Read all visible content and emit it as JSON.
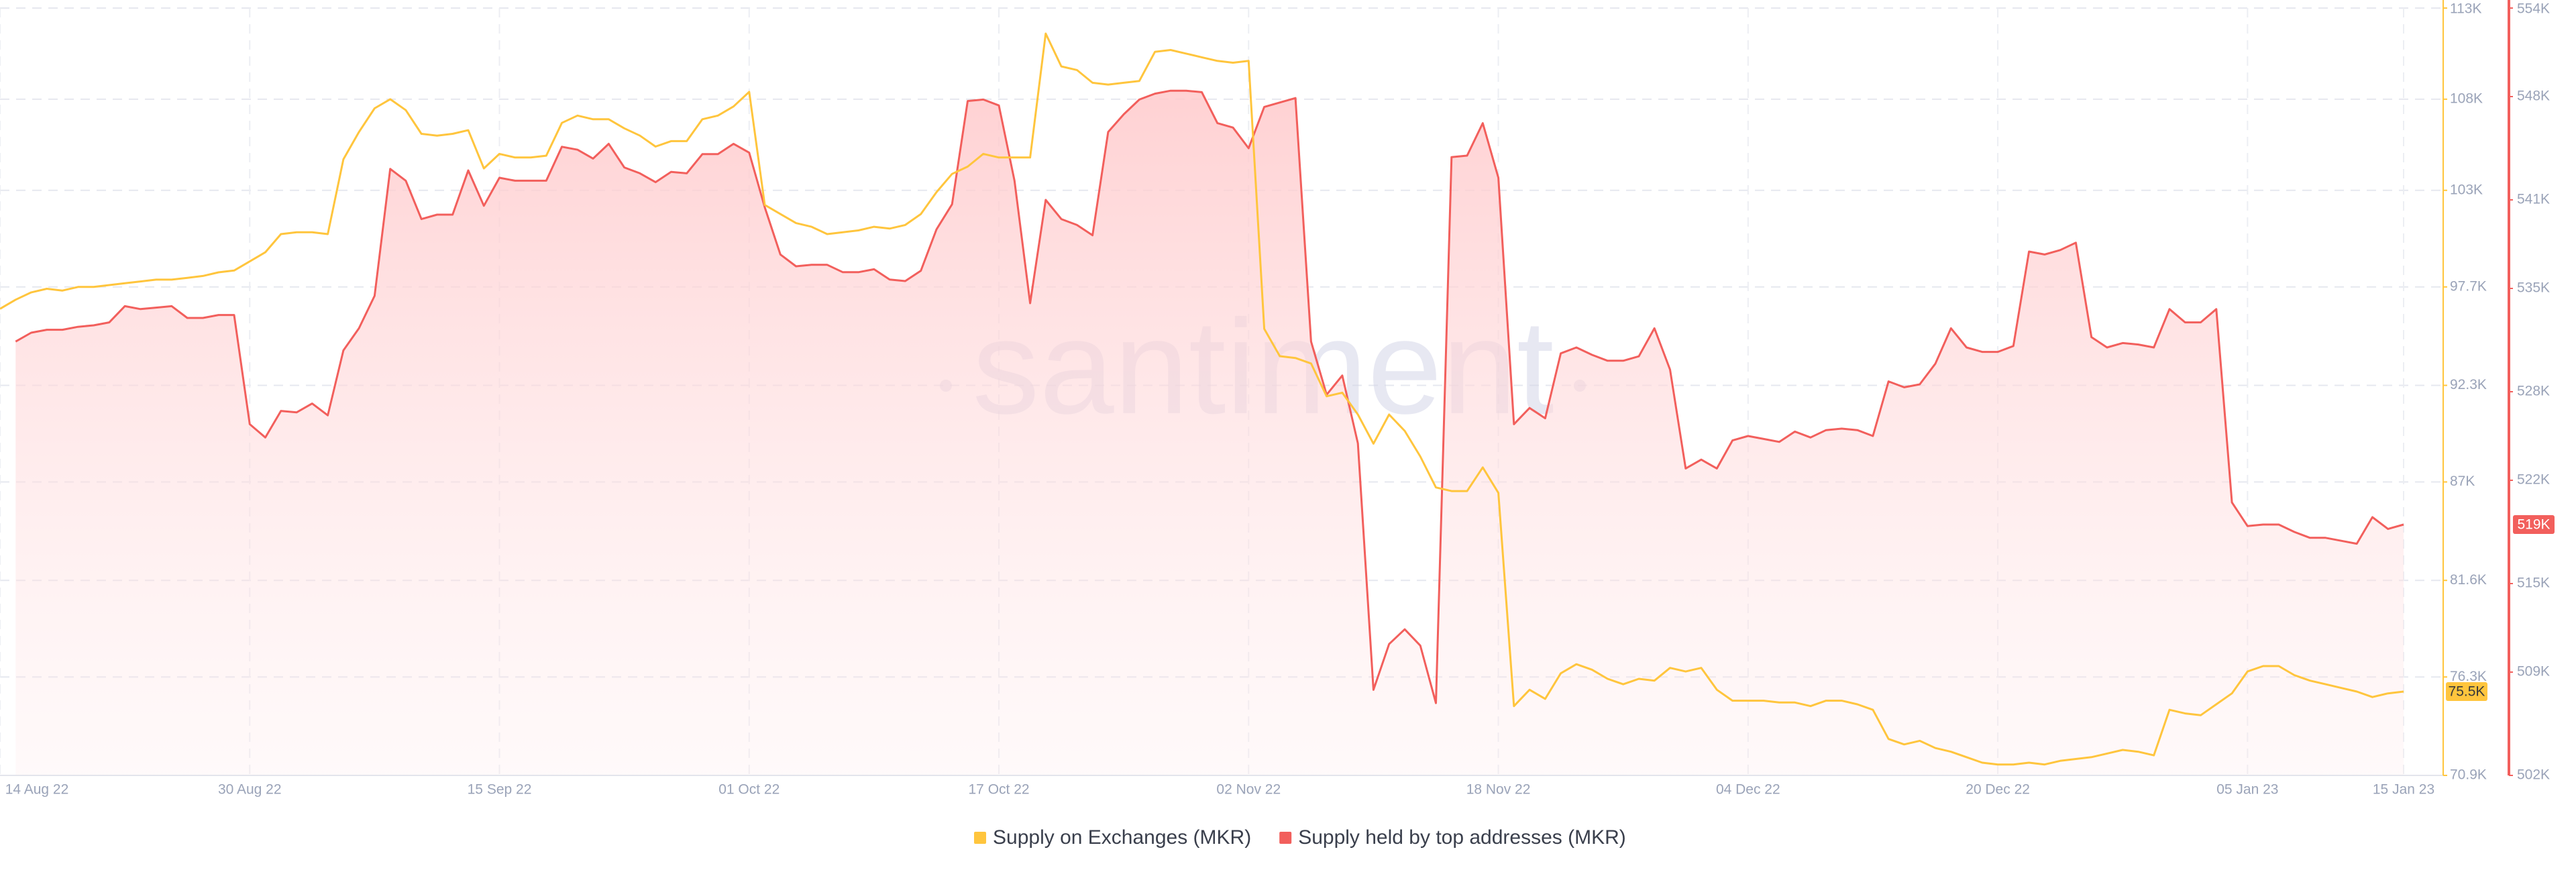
{
  "chart_data": {
    "type": "line",
    "watermark": "santiment",
    "x": [
      "2022-08-14",
      "2022-08-15",
      "2022-08-16",
      "2022-08-17",
      "2022-08-18",
      "2022-08-19",
      "2022-08-20",
      "2022-08-21",
      "2022-08-22",
      "2022-08-23",
      "2022-08-24",
      "2022-08-25",
      "2022-08-26",
      "2022-08-27",
      "2022-08-28",
      "2022-08-29",
      "2022-08-30",
      "2022-08-31",
      "2022-09-01",
      "2022-09-02",
      "2022-09-03",
      "2022-09-04",
      "2022-09-05",
      "2022-09-06",
      "2022-09-07",
      "2022-09-08",
      "2022-09-09",
      "2022-09-10",
      "2022-09-11",
      "2022-09-12",
      "2022-09-13",
      "2022-09-14",
      "2022-09-15",
      "2022-09-16",
      "2022-09-17",
      "2022-09-18",
      "2022-09-19",
      "2022-09-20",
      "2022-09-21",
      "2022-09-22",
      "2022-09-23",
      "2022-09-24",
      "2022-09-25",
      "2022-09-26",
      "2022-09-27",
      "2022-09-28",
      "2022-09-29",
      "2022-09-30",
      "2022-10-01",
      "2022-10-02",
      "2022-10-03",
      "2022-10-04",
      "2022-10-05",
      "2022-10-06",
      "2022-10-07",
      "2022-10-08",
      "2022-10-09",
      "2022-10-10",
      "2022-10-11",
      "2022-10-12",
      "2022-10-13",
      "2022-10-14",
      "2022-10-15",
      "2022-10-16",
      "2022-10-17",
      "2022-10-18",
      "2022-10-19",
      "2022-10-20",
      "2022-10-21",
      "2022-10-22",
      "2022-10-23",
      "2022-10-24",
      "2022-10-25",
      "2022-10-26",
      "2022-10-27",
      "2022-10-28",
      "2022-10-29",
      "2022-10-30",
      "2022-10-31",
      "2022-11-01",
      "2022-11-02",
      "2022-11-03",
      "2022-11-04",
      "2022-11-05",
      "2022-11-06",
      "2022-11-07",
      "2022-11-08",
      "2022-11-09",
      "2022-11-10",
      "2022-11-11",
      "2022-11-12",
      "2022-11-13",
      "2022-11-14",
      "2022-11-15",
      "2022-11-16",
      "2022-11-17",
      "2022-11-18",
      "2022-11-19",
      "2022-11-20",
      "2022-11-21",
      "2022-11-22",
      "2022-11-23",
      "2022-11-24",
      "2022-11-25",
      "2022-11-26",
      "2022-11-27",
      "2022-11-28",
      "2022-11-29",
      "2022-11-30",
      "2022-12-01",
      "2022-12-02",
      "2022-12-03",
      "2022-12-04",
      "2022-12-05",
      "2022-12-06",
      "2022-12-07",
      "2022-12-08",
      "2022-12-09",
      "2022-12-10",
      "2022-12-11",
      "2022-12-12",
      "2022-12-13",
      "2022-12-14",
      "2022-12-15",
      "2022-12-16",
      "2022-12-17",
      "2022-12-18",
      "2022-12-19",
      "2022-12-20",
      "2022-12-21",
      "2022-12-22",
      "2022-12-23",
      "2022-12-24",
      "2022-12-25",
      "2022-12-26",
      "2022-12-27",
      "2022-12-28",
      "2022-12-29",
      "2022-12-30",
      "2022-12-31",
      "2023-01-01",
      "2023-01-02",
      "2023-01-03",
      "2023-01-04",
      "2023-01-05",
      "2023-01-06",
      "2023-01-07",
      "2023-01-08",
      "2023-01-09",
      "2023-01-10",
      "2023-01-11",
      "2023-01-12",
      "2023-01-13",
      "2023-01-14",
      "2023-01-15"
    ],
    "xlim": [
      "2022-08-14",
      "2023-01-15"
    ],
    "xticks": [
      {
        "value": "2022-08-14",
        "label": "14 Aug 22"
      },
      {
        "value": "2022-08-30",
        "label": "30 Aug 22"
      },
      {
        "value": "2022-09-15",
        "label": "15 Sep 22"
      },
      {
        "value": "2022-10-01",
        "label": "01 Oct 22"
      },
      {
        "value": "2022-10-17",
        "label": "17 Oct 22"
      },
      {
        "value": "2022-11-02",
        "label": "02 Nov 22"
      },
      {
        "value": "2022-11-18",
        "label": "18 Nov 22"
      },
      {
        "value": "2022-12-04",
        "label": "04 Dec 22"
      },
      {
        "value": "2022-12-20",
        "label": "20 Dec 22"
      },
      {
        "value": "2023-01-05",
        "label": "05 Jan 23"
      },
      {
        "value": "2023-01-15",
        "label": "15 Jan 23"
      }
    ],
    "ylim": [
      70900,
      113000
    ],
    "yticks": [
      {
        "value": 70900,
        "label": "70.9K"
      },
      {
        "value": 76300,
        "label": "76.3K"
      },
      {
        "value": 81600,
        "label": "81.6K"
      },
      {
        "value": 87000,
        "label": "87K"
      },
      {
        "value": 92300,
        "label": "92.3K"
      },
      {
        "value": 97700,
        "label": "97.7K"
      },
      {
        "value": 103000,
        "label": "103K"
      },
      {
        "value": 108000,
        "label": "108K"
      },
      {
        "value": 113000,
        "label": "113K"
      }
    ],
    "y2lim": [
      502000,
      554000
    ],
    "y2ticks": [
      {
        "value": 502000,
        "label": "502K"
      },
      {
        "value": 509000,
        "label": "509K"
      },
      {
        "value": 515000,
        "label": "515K"
      },
      {
        "value": 522000,
        "label": "522K"
      },
      {
        "value": 528000,
        "label": "528K"
      },
      {
        "value": 535000,
        "label": "535K"
      },
      {
        "value": 541000,
        "label": "541K"
      },
      {
        "value": 548000,
        "label": "548K"
      },
      {
        "value": 554000,
        "label": "554K"
      }
    ],
    "grid": true,
    "legend": "bottom",
    "series": [
      {
        "name": "Supply on Exchanges (MKR)",
        "color": "#ffc53d",
        "axis": "y",
        "last_value_label": "75.5K",
        "values": [
          96500,
          97000,
          97400,
          97600,
          97500,
          97700,
          97700,
          97800,
          97900,
          98000,
          98100,
          98100,
          98200,
          98300,
          98500,
          98600,
          99100,
          99600,
          100600,
          100700,
          100700,
          100600,
          104700,
          106200,
          107500,
          108000,
          107400,
          106100,
          106000,
          106100,
          106300,
          104200,
          105000,
          104800,
          104800,
          104900,
          106700,
          107100,
          106900,
          106900,
          106400,
          106000,
          105400,
          105700,
          105700,
          106900,
          107100,
          107600,
          108400,
          102200,
          101700,
          101200,
          101000,
          100600,
          100700,
          100800,
          101000,
          100900,
          101100,
          101700,
          102900,
          103900,
          104300,
          105000,
          104800,
          104800,
          104800,
          111600,
          109800,
          109600,
          108900,
          108800,
          108900,
          109000,
          110600,
          110700,
          110500,
          110300,
          110100,
          110000,
          110100,
          95400,
          93900,
          93800,
          93500,
          91700,
          91900,
          90700,
          89100,
          90700,
          89800,
          88400,
          86700,
          86500,
          86500,
          87800,
          86400,
          74700,
          75600,
          75100,
          76500,
          77000,
          76700,
          76200,
          75900,
          76200,
          76100,
          76800,
          76600,
          76800,
          75600,
          75000,
          75000,
          75000,
          74900,
          74900,
          74700,
          75000,
          75000,
          74800,
          74500,
          72900,
          72600,
          72800,
          72400,
          72200,
          71900,
          71600,
          71500,
          71500,
          71600,
          71500,
          71700,
          71800,
          71900,
          72100,
          72300,
          72200,
          72000,
          74500,
          74300,
          74200,
          74800,
          75400,
          76600,
          76900,
          76900,
          76400,
          76100,
          75900,
          75700,
          75500,
          75200,
          75400,
          75500
        ]
      },
      {
        "name": "Supply held by top addresses (MKR)",
        "color": "#f25f5c",
        "axis": "y2",
        "last_value_label": "519K",
        "values": [
          null,
          531400,
          532000,
          532200,
          532200,
          532400,
          532500,
          532700,
          533800,
          533600,
          533700,
          533800,
          533000,
          533000,
          533200,
          533200,
          525800,
          524900,
          526700,
          526600,
          527200,
          526400,
          530800,
          532300,
          534500,
          543100,
          542300,
          539700,
          540000,
          540000,
          543000,
          540600,
          542500,
          542300,
          542300,
          542300,
          544600,
          544400,
          543800,
          544800,
          543200,
          542800,
          542200,
          542900,
          542800,
          544100,
          544100,
          544800,
          544200,
          540500,
          537300,
          536500,
          536600,
          536600,
          536100,
          536100,
          536300,
          535600,
          535500,
          536200,
          539000,
          540700,
          547700,
          547800,
          547400,
          542300,
          534000,
          541000,
          539700,
          539300,
          538600,
          545600,
          546800,
          547800,
          548200,
          548400,
          548400,
          548300,
          546200,
          545900,
          544500,
          547300,
          547600,
          547900,
          531400,
          527800,
          529100,
          524500,
          507800,
          510900,
          511900,
          510800,
          506900,
          543900,
          544000,
          546200,
          542500,
          525800,
          526900,
          526200,
          530600,
          531000,
          530500,
          530100,
          530100,
          530400,
          532300,
          529500,
          522800,
          523400,
          522800,
          524700,
          525000,
          524800,
          524600,
          525300,
          524900,
          525400,
          525500,
          525400,
          525000,
          528700,
          528300,
          528500,
          529900,
          532300,
          531000,
          530700,
          530700,
          531100,
          537500,
          537300,
          537600,
          538100,
          531700,
          531000,
          531300,
          531200,
          531000,
          533600,
          532700,
          532700,
          533600,
          520500,
          518900,
          519000,
          519000,
          518500,
          518100,
          518100,
          517900,
          517700,
          519500,
          518700,
          519000
        ]
      }
    ]
  }
}
